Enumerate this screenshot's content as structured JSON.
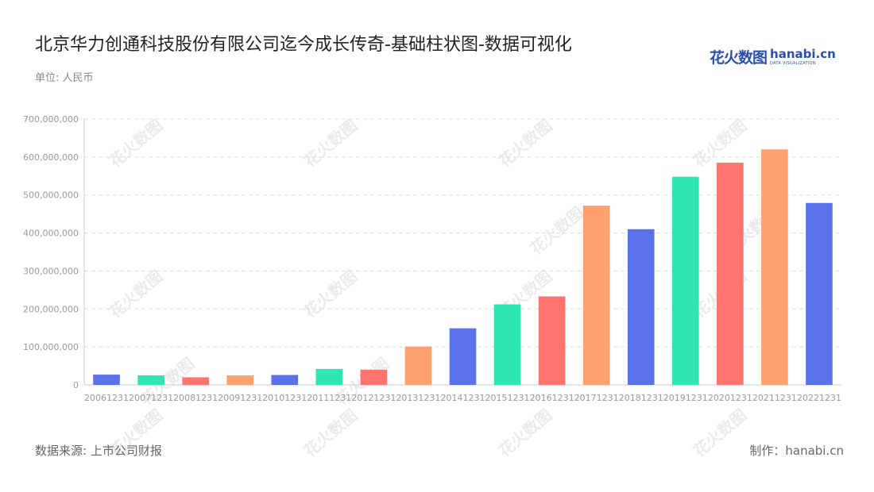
{
  "title": "北京华力创通科技股份有限公司迄今成长传奇-基础柱状图-数据可视化",
  "unit_label": "单位: 人民币",
  "logo": {
    "cn": "花火数图",
    "en": "hanabi.cn",
    "en_sub": "DATA VISUALIZATION"
  },
  "footer": {
    "source": "数据来源: 上市公司财报",
    "credit": "制作：hanabi.cn"
  },
  "watermark_text": "花火数图",
  "chart_data": {
    "type": "bar",
    "categories": [
      "20061231",
      "20071231",
      "20081231",
      "20091231",
      "20101231",
      "20111231",
      "20121231",
      "20131231",
      "20141231",
      "20151231",
      "20161231",
      "20171231",
      "20181231",
      "20191231",
      "20201231",
      "20211231",
      "20221231"
    ],
    "values": [
      27000000,
      25000000,
      20000000,
      25000000,
      26000000,
      42000000,
      40000000,
      101000000,
      149000000,
      212000000,
      233000000,
      472000000,
      410000000,
      548000000,
      585000000,
      620000000,
      479000000
    ],
    "colors": [
      "#5b72eb",
      "#2ee6b0",
      "#ff746e",
      "#ffa16e",
      "#5b72eb",
      "#2ee6b0",
      "#ff746e",
      "#ffa16e",
      "#5b72eb",
      "#2ee6b0",
      "#ff746e",
      "#ffa16e",
      "#5b72eb",
      "#2ee6b0",
      "#ff746e",
      "#ffa16e",
      "#5b72eb"
    ],
    "yticks": [
      "0",
      "100,000,000",
      "200,000,000",
      "300,000,000",
      "400,000,000",
      "500,000,000",
      "600,000,000",
      "700,000,000"
    ],
    "ylim": [
      0,
      700000000
    ],
    "grid": true
  }
}
